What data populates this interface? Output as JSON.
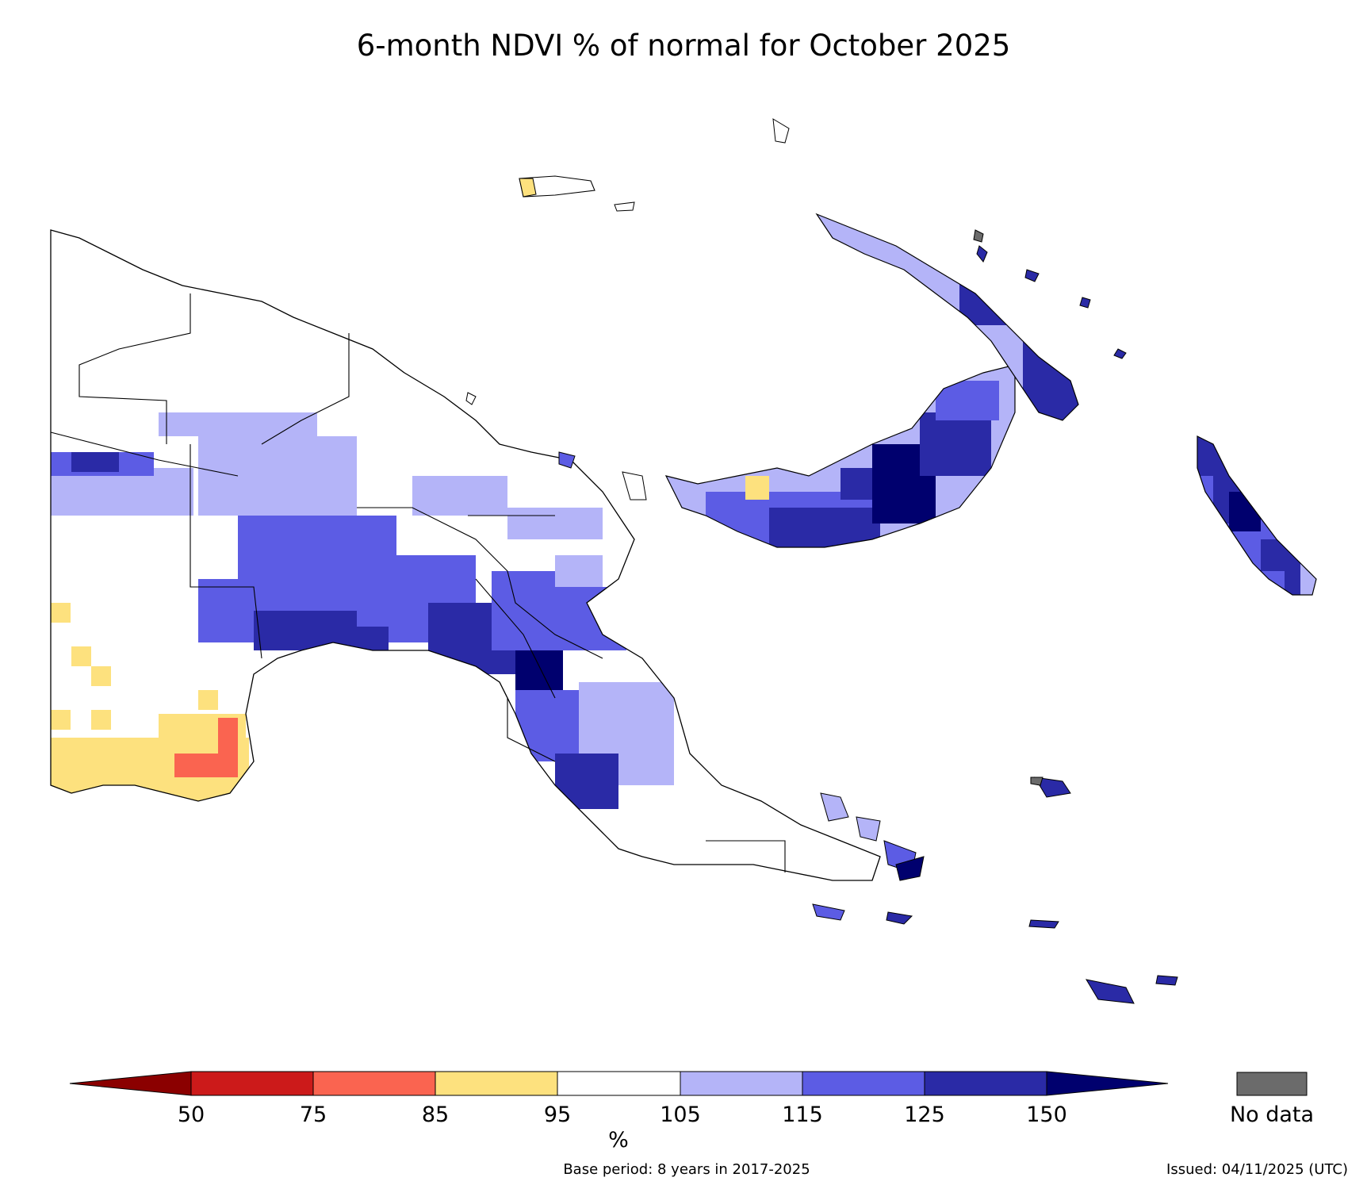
{
  "title": "6-month NDVI % of normal for October 2025",
  "colorbar": {
    "tick_labels": [
      "50",
      "75",
      "85",
      "95",
      "105",
      "115",
      "125",
      "150"
    ],
    "unit_label": "%",
    "colors": [
      "#8b0000",
      "#cc1a1a",
      "#fa6450",
      "#fde17e",
      "#ffffff",
      "#b4b4f8",
      "#5c5ce4",
      "#2a2aa6",
      "#00006e"
    ],
    "no_data_label": "No data",
    "no_data_color": "#6b6b6b"
  },
  "footer": {
    "base_period": "Base period: 8 years in 2017-2025",
    "issued": "Issued: 04/11/2025 (UTC)"
  },
  "map": {
    "region": "Papua New Guinea",
    "category_colors": {
      "lt50": "#8b0000",
      "c50_75": "#cc1a1a",
      "c75_85": "#fa6450",
      "c85_95": "#fde17e",
      "c95_105": "#ffffff",
      "c105_115": "#b4b4f8",
      "c115_125": "#5c5ce4",
      "c125_150": "#2a2aa6",
      "gt150": "#00006e",
      "nodata": "#6b6b6b"
    }
  }
}
